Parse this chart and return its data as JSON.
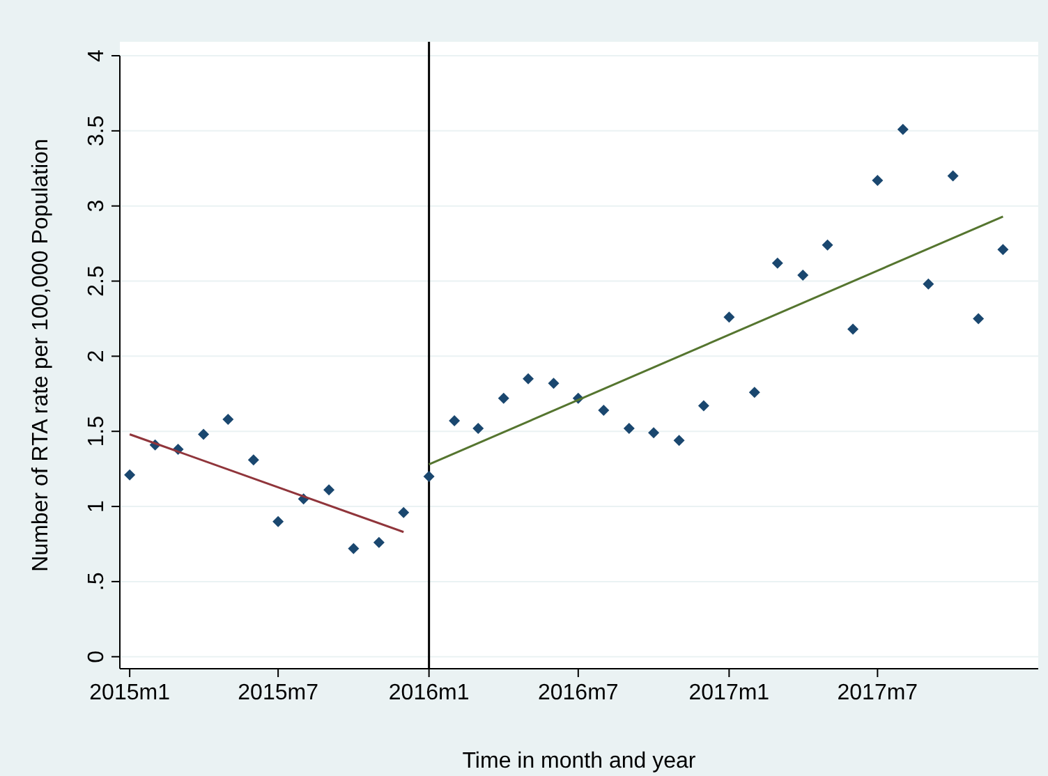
{
  "chart_data": {
    "type": "scatter",
    "xlabel": "Time in month and year",
    "ylabel": "Number of RTA rate per 100,000 Population",
    "x": [
      "2015-01",
      "2015-02",
      "2015-03",
      "2015-04",
      "2015-05",
      "2015-06",
      "2015-07",
      "2015-08",
      "2015-09",
      "2015-10",
      "2015-11",
      "2015-12",
      "2016-01",
      "2016-02",
      "2016-03",
      "2016-04",
      "2016-05",
      "2016-06",
      "2016-07",
      "2016-08",
      "2016-09",
      "2016-10",
      "2016-11",
      "2016-12",
      "2017-01",
      "2017-02",
      "2017-03",
      "2017-04",
      "2017-05",
      "2017-06",
      "2017-07",
      "2017-08",
      "2017-09",
      "2017-10",
      "2017-11",
      "2017-12"
    ],
    "series": [
      {
        "color": "#1a476f",
        "marker": "diamond",
        "values": [
          1.21,
          1.41,
          1.38,
          1.48,
          1.58,
          1.31,
          0.9,
          1.05,
          1.11,
          0.72,
          0.76,
          0.96,
          1.2,
          1.57,
          1.52,
          1.72,
          1.85,
          1.82,
          1.72,
          1.64,
          1.52,
          1.49,
          1.44,
          1.67,
          2.26,
          1.76,
          2.62,
          2.54,
          2.74,
          2.18,
          3.17,
          3.51,
          2.48,
          3.2,
          2.25,
          2.71
        ]
      },
      {
        "type": "line",
        "color": "#90353b",
        "x": [
          "2015-01",
          "2015-12"
        ],
        "values": [
          1.48,
          0.83
        ]
      },
      {
        "type": "line",
        "color": "#55752f",
        "x": [
          "2016-01",
          "2017-12"
        ],
        "values": [
          1.28,
          2.93
        ]
      }
    ],
    "xlim": [
      "2014-12-20",
      "2018-01-13"
    ],
    "xticks": [
      {
        "value": "2015-01",
        "label": "2015m1"
      },
      {
        "value": "2015-07",
        "label": "2015m7"
      },
      {
        "value": "2016-01",
        "label": "2016m1"
      },
      {
        "value": "2016-07",
        "label": "2016m7"
      },
      {
        "value": "2017-01",
        "label": "2017m1"
      },
      {
        "value": "2017-07",
        "label": "2017m7"
      }
    ],
    "ylim": [
      -0.08,
      4
    ],
    "yticks": [
      0,
      {
        "value": 0.5,
        "label": ".5"
      },
      1,
      1.5,
      2,
      2.5,
      3,
      3.5,
      4
    ],
    "ref_lines": [
      {
        "axis": "x",
        "value": "2016-01",
        "color": "#000000"
      }
    ],
    "grid": "y"
  }
}
